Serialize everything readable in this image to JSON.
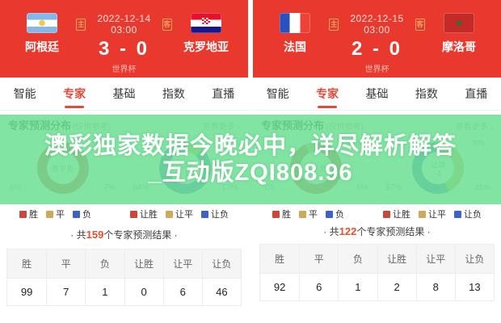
{
  "colors": {
    "header_bg": "#e9382e",
    "accent": "#e5493a",
    "win_red": "#c9473b",
    "draw_yellow": "#cfa95a",
    "lose_blue": "#3f62c9",
    "overlay_green": "#6ee094",
    "count_orange": "#e4502e"
  },
  "overlay": {
    "line1": "澳彩独家数据今晚必中，详尽解析解答",
    "line2": "_互动版ZQI808.96"
  },
  "panels": [
    {
      "header": {
        "home_badge": "主",
        "away_badge": "客",
        "date": "2022-12-14 03:00",
        "score": "3 - 0",
        "league": "世界杯",
        "home_team": "阿根廷",
        "away_team": "克罗地亚",
        "home_flag": "argentina-flag",
        "away_flag": "croatia-flag"
      },
      "tabs": [
        {
          "label": "智能",
          "active": false
        },
        {
          "label": "专家",
          "active": true
        },
        {
          "label": "基础",
          "active": false
        },
        {
          "label": "指数",
          "active": false
        },
        {
          "label": "直播",
          "active": false
        }
      ],
      "section": {
        "title": "专家预测分布",
        "subtitle": "(仅供参考)",
        "more": "查看更多 ›"
      },
      "donuts": [
        {
          "center_line1": "胜平负",
          "center_line2": "",
          "pct_left": "0%",
          "pct_top": "93%",
          "pct_right": "7%",
          "segments": {
            "win": 93,
            "draw": 7,
            "lose": 0
          },
          "legend": [
            "胜",
            "平",
            "负"
          ]
        },
        {
          "center_line1": "让球",
          "center_line2": "-1",
          "pct_left": "88%",
          "pct_top": "0%",
          "pct_right": "12%",
          "segments": {
            "win": 0,
            "draw": 12,
            "lose": 88
          },
          "legend": [
            "让胜",
            "让平",
            "让负"
          ]
        }
      ],
      "summary": {
        "prefix": "· 共",
        "count": "159",
        "suffix": "个专家预测结果 ·"
      },
      "table": {
        "headers": [
          "胜",
          "平",
          "负",
          "让胜",
          "让平",
          "让负"
        ],
        "values": [
          "99",
          "7",
          "1",
          "0",
          "6",
          "46"
        ]
      }
    },
    {
      "header": {
        "home_badge": "主",
        "away_badge": "客",
        "date": "2022-12-15 03:00",
        "score": "2 - 0",
        "league": "世界杯",
        "home_team": "法国",
        "away_team": "摩洛哥",
        "home_flag": "france-flag",
        "away_flag": "morocco-flag"
      },
      "tabs": [
        {
          "label": "智能",
          "active": false
        },
        {
          "label": "专家",
          "active": true
        },
        {
          "label": "基础",
          "active": false
        },
        {
          "label": "指数",
          "active": false
        },
        {
          "label": "直播",
          "active": false
        }
      ],
      "section": {
        "title": "专家预测分布",
        "subtitle": "(仅供参考)",
        "more": "查看更多 ›"
      },
      "donuts": [
        {
          "center_line1": "胜平负",
          "center_line2": "",
          "pct_left": "1%",
          "pct_top": "93%",
          "pct_right": "6%",
          "segments": {
            "win": 93,
            "draw": 6,
            "lose": 1
          },
          "legend": [
            "胜",
            "平",
            "负"
          ]
        },
        {
          "center_line1": "让球",
          "center_line2": "-1",
          "pct_left": "57%",
          "pct_top": "8%",
          "pct_right": "35%",
          "segments": {
            "win": 8,
            "draw": 35,
            "lose": 57
          },
          "legend": [
            "让胜",
            "让平",
            "让负"
          ]
        }
      ],
      "summary": {
        "prefix": "· 共",
        "count": "122",
        "suffix": "个专家预测结果 ·"
      },
      "table": {
        "headers": [
          "胜",
          "平",
          "负",
          "让胜",
          "让平",
          "让负"
        ],
        "values": [
          "92",
          "6",
          "1",
          "2",
          "8",
          "13"
        ]
      }
    }
  ]
}
